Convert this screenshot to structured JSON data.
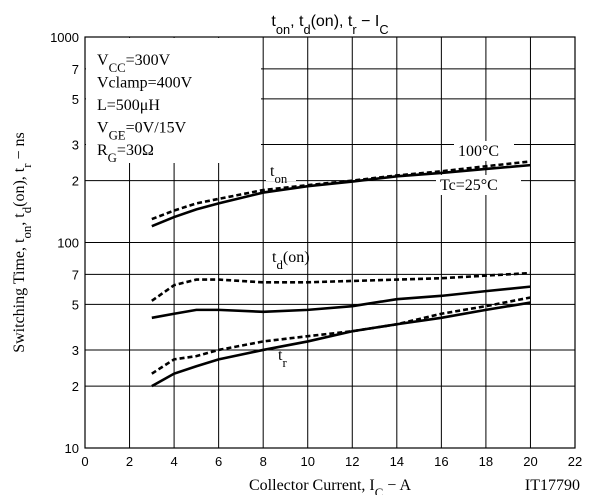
{
  "chart_data": {
    "type": "line",
    "title": [
      "t",
      "on",
      ", t",
      "d",
      "(on), t",
      "r",
      "  −  I",
      "C"
    ],
    "x_label": [
      "Collector Current, I",
      "C",
      "  −  A"
    ],
    "y_label": [
      "Switching Time, t",
      "on",
      ", t",
      "d",
      "(on), t",
      "r",
      "  −  ns"
    ],
    "conditions": [
      [
        "V",
        "CC",
        "=300V"
      ],
      [
        "Vclamp=400V"
      ],
      [
        "L=500μH"
      ],
      [
        "V",
        "GE",
        "=0V/15V"
      ],
      [
        "R",
        "G",
        "=30Ω"
      ]
    ],
    "curve_labels": {
      "ton": [
        "t",
        "on"
      ],
      "tdon": [
        "t",
        "d",
        "(on)"
      ],
      "tr": [
        "t",
        "r"
      ],
      "hot": [
        "100°C"
      ],
      "cold": [
        "Tc=25°C"
      ]
    },
    "figure_id": "IT17790",
    "log_y": true,
    "grid": true,
    "xlim": [
      0,
      22
    ],
    "ylim": [
      10,
      1000
    ],
    "xticks": [
      0,
      2,
      4,
      6,
      8,
      10,
      12,
      14,
      16,
      18,
      20,
      22
    ],
    "yticks": [
      10,
      {
        "value": 20,
        "label": "2"
      },
      {
        "value": 30,
        "label": "3"
      },
      {
        "value": 50,
        "label": "5"
      },
      {
        "value": 70,
        "label": "7"
      },
      100,
      {
        "value": 200,
        "label": "2"
      },
      {
        "value": 300,
        "label": "3"
      },
      {
        "value": 500,
        "label": "5"
      },
      {
        "value": 700,
        "label": "7"
      },
      1000
    ],
    "x": [
      3,
      4,
      5,
      6,
      8,
      10,
      12,
      14,
      16,
      18,
      20
    ],
    "series": [
      {
        "color": "#000000",
        "dashed": false,
        "values": [
          120,
          133,
          145,
          155,
          175,
          188,
          198,
          210,
          218,
          228,
          238
        ]
      },
      {
        "color": "#000000",
        "dashed": true,
        "values": [
          130,
          143,
          155,
          163,
          180,
          190,
          200,
          212,
          222,
          235,
          248
        ]
      },
      {
        "color": "#000000",
        "dashed": false,
        "values": [
          43,
          45,
          47,
          47,
          46,
          47,
          49,
          53,
          55,
          58,
          61
        ]
      },
      {
        "color": "#000000",
        "dashed": true,
        "values": [
          52,
          62,
          66,
          66,
          64,
          64,
          65,
          66,
          67,
          69,
          71
        ]
      },
      {
        "color": "#000000",
        "dashed": false,
        "values": [
          20,
          23,
          25,
          27,
          30,
          33,
          37,
          40,
          43,
          47,
          51
        ]
      },
      {
        "color": "#000000",
        "dashed": true,
        "values": [
          23,
          27,
          28,
          30,
          33,
          35,
          37,
          40,
          45,
          49,
          54
        ]
      }
    ]
  }
}
